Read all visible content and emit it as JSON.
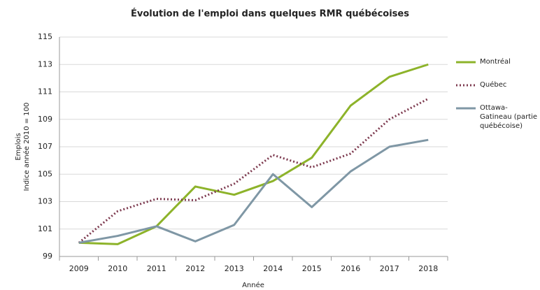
{
  "chart_data": {
    "type": "line",
    "title": "Évolution de l'emploi dans quelques RMR québécoises",
    "xlabel": "Année",
    "ylabel": [
      "Emplois",
      "Indice année 2010 = 100"
    ],
    "categories": [
      "2009",
      "2010",
      "2011",
      "2012",
      "2013",
      "2014",
      "2015",
      "2016",
      "2017",
      "2018"
    ],
    "series": [
      {
        "name": "Montréal",
        "color": "#8db32a",
        "dash": "solid",
        "values": [
          100.0,
          99.9,
          101.2,
          104.1,
          103.5,
          104.5,
          106.2,
          110.0,
          112.1,
          113.0
        ]
      },
      {
        "name": "Québec",
        "color": "#7d3a4f",
        "dash": "dotted",
        "values": [
          100.0,
          102.3,
          103.2,
          103.1,
          104.3,
          106.4,
          105.5,
          106.5,
          109.0,
          110.5
        ]
      },
      {
        "name": "Ottawa-Gatineau (partie québécoise)",
        "color": "#7f97a5",
        "dash": "solid",
        "values": [
          100.0,
          100.5,
          101.2,
          100.1,
          101.3,
          105.0,
          102.6,
          105.2,
          107.0,
          107.5
        ]
      }
    ],
    "ylim": [
      99,
      115
    ],
    "yticks": [
      99,
      101,
      103,
      105,
      107,
      109,
      111,
      113,
      115
    ],
    "grid": true,
    "legend": "right"
  }
}
